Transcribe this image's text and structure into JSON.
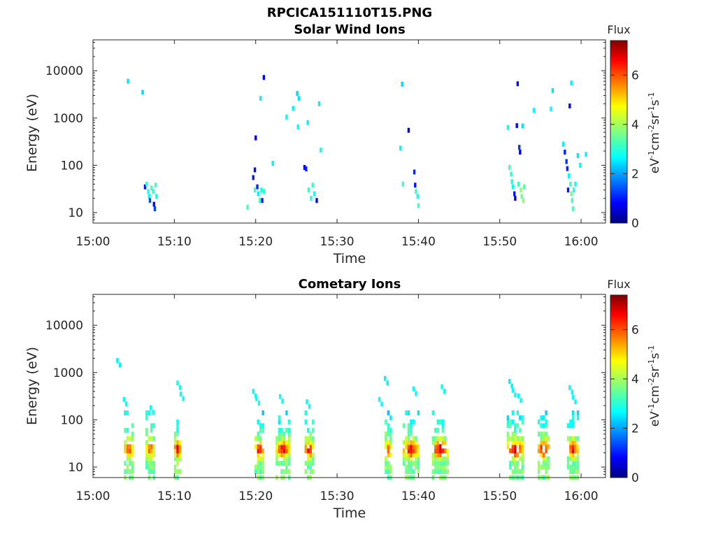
{
  "figure": {
    "title": "RPCICA151110T15.PNG"
  },
  "colorbar": {
    "label": "Flux",
    "unit_parts": [
      "eV",
      "-1",
      "cm",
      "-2",
      "sr",
      "-1",
      "s",
      "-1"
    ],
    "ticks": [
      0,
      2,
      4,
      6
    ],
    "range": [
      0,
      7.4
    ],
    "colormap": "jet"
  },
  "chart_data": [
    {
      "type": "heatmap",
      "title": "Solar Wind Ions",
      "xlabel": "Time",
      "ylabel": "Energy (eV)",
      "x_ticks": [
        "15:00",
        "15:10",
        "15:20",
        "15:30",
        "15:40",
        "15:50",
        "16:00"
      ],
      "y_ticks": [
        "10",
        "100",
        "1000",
        "10000"
      ],
      "xlim_minutes": [
        0,
        63
      ],
      "ylim_eV": [
        6,
        45000
      ],
      "yscale": "log",
      "points": [
        {
          "t": 4.3,
          "e": 6000,
          "f": 2.6
        },
        {
          "t": 6.1,
          "e": 3500,
          "f": 2.5
        },
        {
          "t": 6.4,
          "e": 35,
          "f": 1.0
        },
        {
          "t": 6.6,
          "e": 40,
          "f": 3.2
        },
        {
          "t": 6.8,
          "e": 28,
          "f": 3.0
        },
        {
          "t": 6.9,
          "e": 22,
          "f": 2.8
        },
        {
          "t": 7.0,
          "e": 18,
          "f": 1.5
        },
        {
          "t": 7.2,
          "e": 33,
          "f": 3.3
        },
        {
          "t": 7.4,
          "e": 28,
          "f": 3.1
        },
        {
          "t": 7.5,
          "e": 15,
          "f": 1.0
        },
        {
          "t": 7.6,
          "e": 12,
          "f": 1.4
        },
        {
          "t": 7.7,
          "e": 38,
          "f": 3.2
        },
        {
          "t": 7.8,
          "e": 22,
          "f": 3.0
        },
        {
          "t": 19.0,
          "e": 13,
          "f": 3.3
        },
        {
          "t": 19.7,
          "e": 55,
          "f": 1.1
        },
        {
          "t": 19.9,
          "e": 80,
          "f": 1.0
        },
        {
          "t": 19.9,
          "e": 30,
          "f": 3.2
        },
        {
          "t": 20.0,
          "e": 380,
          "f": 0.8
        },
        {
          "t": 20.2,
          "e": 35,
          "f": 1.2
        },
        {
          "t": 20.3,
          "e": 25,
          "f": 2.7
        },
        {
          "t": 20.5,
          "e": 18,
          "f": 3.2
        },
        {
          "t": 20.6,
          "e": 2600,
          "f": 2.7
        },
        {
          "t": 20.7,
          "e": 30,
          "f": 3.0
        },
        {
          "t": 20.8,
          "e": 18,
          "f": 1.1
        },
        {
          "t": 21.0,
          "e": 7200,
          "f": 0.9
        },
        {
          "t": 21.0,
          "e": 28,
          "f": 3.1
        },
        {
          "t": 22.1,
          "e": 110,
          "f": 2.7
        },
        {
          "t": 23.8,
          "e": 1050,
          "f": 2.8
        },
        {
          "t": 24.6,
          "e": 1600,
          "f": 2.7
        },
        {
          "t": 25.1,
          "e": 3300,
          "f": 2.5
        },
        {
          "t": 25.2,
          "e": 650,
          "f": 2.8
        },
        {
          "t": 25.3,
          "e": 2600,
          "f": 2.6
        },
        {
          "t": 26.0,
          "e": 90,
          "f": 0.9
        },
        {
          "t": 26.2,
          "e": 84,
          "f": 1.2
        },
        {
          "t": 26.4,
          "e": 800,
          "f": 2.7
        },
        {
          "t": 26.5,
          "e": 30,
          "f": 3.3
        },
        {
          "t": 26.8,
          "e": 20,
          "f": 3.1
        },
        {
          "t": 27.0,
          "e": 38,
          "f": 3.2
        },
        {
          "t": 27.2,
          "e": 25,
          "f": 3.0
        },
        {
          "t": 27.5,
          "e": 18,
          "f": 1.0
        },
        {
          "t": 27.8,
          "e": 2000,
          "f": 2.7
        },
        {
          "t": 28.0,
          "e": 210,
          "f": 2.9
        },
        {
          "t": 37.8,
          "e": 230,
          "f": 2.7
        },
        {
          "t": 38.0,
          "e": 5200,
          "f": 2.5
        },
        {
          "t": 38.1,
          "e": 40,
          "f": 3.2
        },
        {
          "t": 38.8,
          "e": 550,
          "f": 0.9
        },
        {
          "t": 39.5,
          "e": 72,
          "f": 1.2
        },
        {
          "t": 39.6,
          "e": 38,
          "f": 1.1
        },
        {
          "t": 39.7,
          "e": 28,
          "f": 3.2
        },
        {
          "t": 39.9,
          "e": 22,
          "f": 3.0
        },
        {
          "t": 40.0,
          "e": 14,
          "f": 3.3
        },
        {
          "t": 51.0,
          "e": 630,
          "f": 2.8
        },
        {
          "t": 51.2,
          "e": 90,
          "f": 3.3
        },
        {
          "t": 51.4,
          "e": 65,
          "f": 3.1
        },
        {
          "t": 51.5,
          "e": 45,
          "f": 3.0
        },
        {
          "t": 51.6,
          "e": 35,
          "f": 2.9
        },
        {
          "t": 51.8,
          "e": 25,
          "f": 1.1
        },
        {
          "t": 51.9,
          "e": 20,
          "f": 0.9
        },
        {
          "t": 52.1,
          "e": 690,
          "f": 1.0
        },
        {
          "t": 52.2,
          "e": 5300,
          "f": 1.0
        },
        {
          "t": 52.3,
          "e": 40,
          "f": 3.2
        },
        {
          "t": 52.4,
          "e": 240,
          "f": 1.3
        },
        {
          "t": 52.5,
          "e": 190,
          "f": 0.9
        },
        {
          "t": 52.6,
          "e": 30,
          "f": 3.8
        },
        {
          "t": 52.7,
          "e": 22,
          "f": 3.6
        },
        {
          "t": 52.8,
          "e": 680,
          "f": 2.6
        },
        {
          "t": 52.9,
          "e": 18,
          "f": 3.7
        },
        {
          "t": 53.0,
          "e": 35,
          "f": 3.4
        },
        {
          "t": 54.2,
          "e": 1450,
          "f": 2.7
        },
        {
          "t": 56.3,
          "e": 1550,
          "f": 2.8
        },
        {
          "t": 56.5,
          "e": 3800,
          "f": 2.6
        },
        {
          "t": 57.8,
          "e": 280,
          "f": 2.7
        },
        {
          "t": 58.0,
          "e": 190,
          "f": 1.2
        },
        {
          "t": 58.2,
          "e": 120,
          "f": 1.3
        },
        {
          "t": 58.3,
          "e": 85,
          "f": 1.2
        },
        {
          "t": 58.5,
          "e": 60,
          "f": 2.8
        },
        {
          "t": 58.4,
          "e": 30,
          "f": 1.1
        },
        {
          "t": 58.6,
          "e": 1800,
          "f": 1.0
        },
        {
          "t": 58.7,
          "e": 40,
          "f": 3.3
        },
        {
          "t": 58.8,
          "e": 5500,
          "f": 2.7
        },
        {
          "t": 58.8,
          "e": 25,
          "f": 3.6
        },
        {
          "t": 58.9,
          "e": 18,
          "f": 3.2
        },
        {
          "t": 59.0,
          "e": 12,
          "f": 3.4
        },
        {
          "t": 59.1,
          "e": 30,
          "f": 3.0
        },
        {
          "t": 59.3,
          "e": 40,
          "f": 2.9
        },
        {
          "t": 59.6,
          "e": 160,
          "f": 2.6
        },
        {
          "t": 59.9,
          "e": 100,
          "f": 2.7
        },
        {
          "t": 60.6,
          "e": 170,
          "f": 2.7
        }
      ]
    },
    {
      "type": "heatmap",
      "title": "Cometary Ions",
      "xlabel": "Time",
      "ylabel": "Energy (eV)",
      "x_ticks": [
        "15:00",
        "15:10",
        "15:20",
        "15:30",
        "15:40",
        "15:50",
        "16:00"
      ],
      "y_ticks": [
        "10",
        "100",
        "1000",
        "10000"
      ],
      "xlim_minutes": [
        0,
        63
      ],
      "ylim_eV": [
        6,
        45000
      ],
      "yscale": "log",
      "blobs": [
        {
          "t": 4.6,
          "peak_f": 6.6,
          "w": 1.3
        },
        {
          "t": 7.2,
          "peak_f": 6.0,
          "w": 1.2
        },
        {
          "t": 10.6,
          "peak_f": 7.0,
          "w": 1.0
        },
        {
          "t": 20.6,
          "peak_f": 6.8,
          "w": 1.2
        },
        {
          "t": 23.5,
          "peak_f": 7.0,
          "w": 1.8
        },
        {
          "t": 26.8,
          "peak_f": 6.9,
          "w": 1.3
        },
        {
          "t": 36.5,
          "peak_f": 6.2,
          "w": 1.0
        },
        {
          "t": 39.2,
          "peak_f": 6.9,
          "w": 2.0
        },
        {
          "t": 42.8,
          "peak_f": 7.2,
          "w": 2.0
        },
        {
          "t": 52.0,
          "peak_f": 7.0,
          "w": 2.0
        },
        {
          "t": 55.6,
          "peak_f": 7.1,
          "w": 1.6
        },
        {
          "t": 59.2,
          "peak_f": 6.8,
          "w": 1.6
        }
      ],
      "high_energy_points": [
        {
          "t": 3.0,
          "e": 1800,
          "f": 2.7
        },
        {
          "t": 3.8,
          "e": 270,
          "f": 2.8
        },
        {
          "t": 7.1,
          "e": 180,
          "f": 2.8
        },
        {
          "t": 10.4,
          "e": 600,
          "f": 2.9
        },
        {
          "t": 10.8,
          "e": 350,
          "f": 2.8
        },
        {
          "t": 19.7,
          "e": 400,
          "f": 2.8
        },
        {
          "t": 20.1,
          "e": 280,
          "f": 2.9
        },
        {
          "t": 23.0,
          "e": 310,
          "f": 2.8
        },
        {
          "t": 26.3,
          "e": 240,
          "f": 2.8
        },
        {
          "t": 35.2,
          "e": 270,
          "f": 2.8
        },
        {
          "t": 35.9,
          "e": 750,
          "f": 2.7
        },
        {
          "t": 39.4,
          "e": 450,
          "f": 2.8
        },
        {
          "t": 42.9,
          "e": 500,
          "f": 2.8
        },
        {
          "t": 51.2,
          "e": 650,
          "f": 2.7
        },
        {
          "t": 51.6,
          "e": 420,
          "f": 2.8
        },
        {
          "t": 52.3,
          "e": 320,
          "f": 2.8
        },
        {
          "t": 58.6,
          "e": 480,
          "f": 2.8
        },
        {
          "t": 59.0,
          "e": 300,
          "f": 2.8
        }
      ]
    }
  ]
}
